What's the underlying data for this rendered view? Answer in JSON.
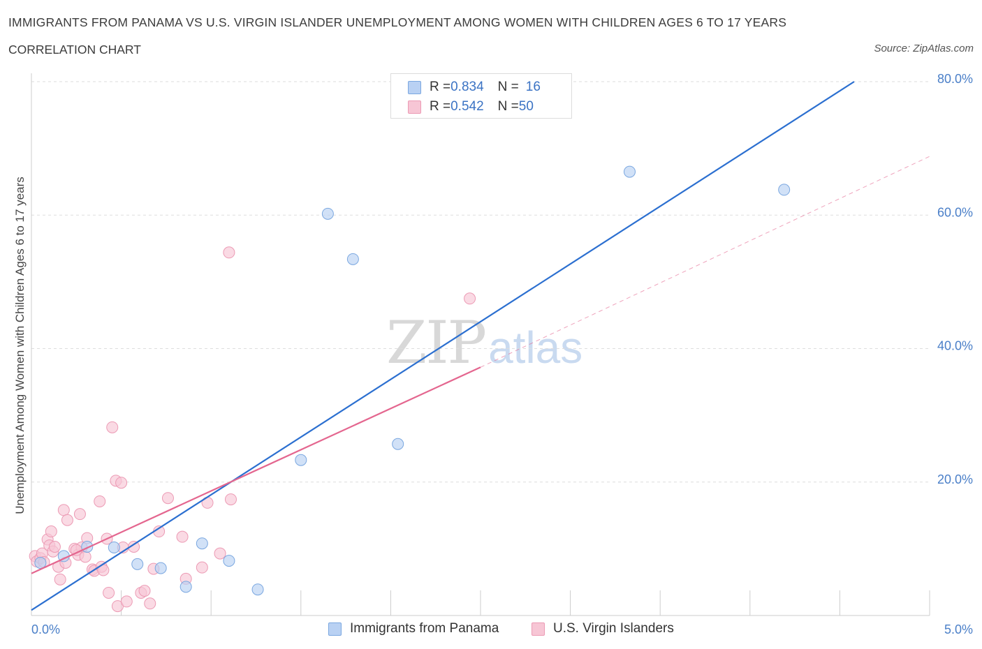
{
  "header": {
    "title": "IMMIGRANTS FROM PANAMA VS U.S. VIRGIN ISLANDER UNEMPLOYMENT AMONG WOMEN WITH CHILDREN AGES 6 TO 17 YEARS",
    "subtitle": "CORRELATION CHART",
    "source": "Source: ZipAtlas.com"
  },
  "watermark": {
    "zip": "ZIP",
    "atlas": "atlas"
  },
  "legend_top": {
    "rows": [
      {
        "r_label": "R = ",
        "r_value": "0.834",
        "n_label": "N = ",
        "n_value": "16"
      },
      {
        "r_label": "R = ",
        "r_value": "0.542",
        "n_label": "N = ",
        "n_value": "50"
      }
    ]
  },
  "legend_bottom": {
    "items": [
      "Immigrants from Panama",
      "U.S. Virgin Islanders"
    ]
  },
  "colors": {
    "blue_fill": "#b9d1f3",
    "blue_stroke": "#7aa7e0",
    "blue_line": "#2b6fd0",
    "pink_fill": "#f7c6d5",
    "pink_stroke": "#ec9ab4",
    "pink_line": "#e4668f",
    "grid": "#dddddd",
    "tick_text": "#4a7fc8"
  },
  "chart_data": {
    "type": "scatter",
    "ylabel": "Unemployment Among Women with Children Ages 6 to 17 years",
    "xlabel": "",
    "xlim": [
      0,
      5
    ],
    "ylim": [
      0,
      80
    ],
    "x_tick_labels": [
      "0.0%",
      "5.0%"
    ],
    "y_ticks": [
      20,
      40,
      60,
      80
    ],
    "y_tick_labels": [
      "20.0%",
      "40.0%",
      "60.0%",
      "80.0%"
    ],
    "grid": true,
    "series": [
      {
        "name": "Immigrants from Panama",
        "r": 0.834,
        "n": 16,
        "points": [
          [
            0.05,
            7.9
          ],
          [
            0.18,
            8.9
          ],
          [
            0.31,
            10.3
          ],
          [
            0.46,
            10.2
          ],
          [
            0.59,
            7.7
          ],
          [
            0.72,
            7.1
          ],
          [
            0.86,
            4.3
          ],
          [
            0.95,
            10.8
          ],
          [
            1.1,
            8.2
          ],
          [
            1.26,
            3.9
          ],
          [
            1.5,
            23.3
          ],
          [
            1.65,
            60.2
          ],
          [
            1.79,
            53.4
          ],
          [
            2.04,
            25.7
          ],
          [
            3.33,
            66.5
          ],
          [
            4.19,
            63.8
          ]
        ],
        "trend": {
          "x0": 0.0,
          "y0": 0.8,
          "x1": 4.58,
          "y1": 80.0
        }
      },
      {
        "name": "U.S. Virgin Islanders",
        "r": 0.542,
        "n": 50,
        "points": [
          [
            0.02,
            8.9
          ],
          [
            0.03,
            8.1
          ],
          [
            0.05,
            8.6
          ],
          [
            0.06,
            9.3
          ],
          [
            0.07,
            8.0
          ],
          [
            0.09,
            11.4
          ],
          [
            0.1,
            10.5
          ],
          [
            0.11,
            12.6
          ],
          [
            0.12,
            9.6
          ],
          [
            0.13,
            10.3
          ],
          [
            0.15,
            7.3
          ],
          [
            0.16,
            5.4
          ],
          [
            0.18,
            15.8
          ],
          [
            0.19,
            7.9
          ],
          [
            0.2,
            14.3
          ],
          [
            0.24,
            10.0
          ],
          [
            0.26,
            9.1
          ],
          [
            0.27,
            15.2
          ],
          [
            0.28,
            10.2
          ],
          [
            0.3,
            8.8
          ],
          [
            0.31,
            11.6
          ],
          [
            0.34,
            6.9
          ],
          [
            0.35,
            6.7
          ],
          [
            0.38,
            17.1
          ],
          [
            0.39,
            7.3
          ],
          [
            0.42,
            11.5
          ],
          [
            0.43,
            3.4
          ],
          [
            0.45,
            28.2
          ],
          [
            0.47,
            20.2
          ],
          [
            0.48,
            1.4
          ],
          [
            0.5,
            19.9
          ],
          [
            0.51,
            10.2
          ],
          [
            0.53,
            2.1
          ],
          [
            0.57,
            10.3
          ],
          [
            0.61,
            3.4
          ],
          [
            0.63,
            3.7
          ],
          [
            0.66,
            1.8
          ],
          [
            0.68,
            7.0
          ],
          [
            0.71,
            12.6
          ],
          [
            0.76,
            17.6
          ],
          [
            0.84,
            11.8
          ],
          [
            0.86,
            5.5
          ],
          [
            0.95,
            7.2
          ],
          [
            0.98,
            16.9
          ],
          [
            1.05,
            9.3
          ],
          [
            1.1,
            54.4
          ],
          [
            1.11,
            17.4
          ],
          [
            2.44,
            47.5
          ],
          [
            0.25,
            9.8
          ],
          [
            0.4,
            6.8
          ]
        ],
        "trend": {
          "x0": 0.0,
          "y0": 6.3,
          "x1": 2.5,
          "y1": 37.2
        },
        "trend_extension": {
          "x0": 2.5,
          "y0": 37.2,
          "x1": 5.0,
          "y1": 68.8
        }
      }
    ]
  }
}
